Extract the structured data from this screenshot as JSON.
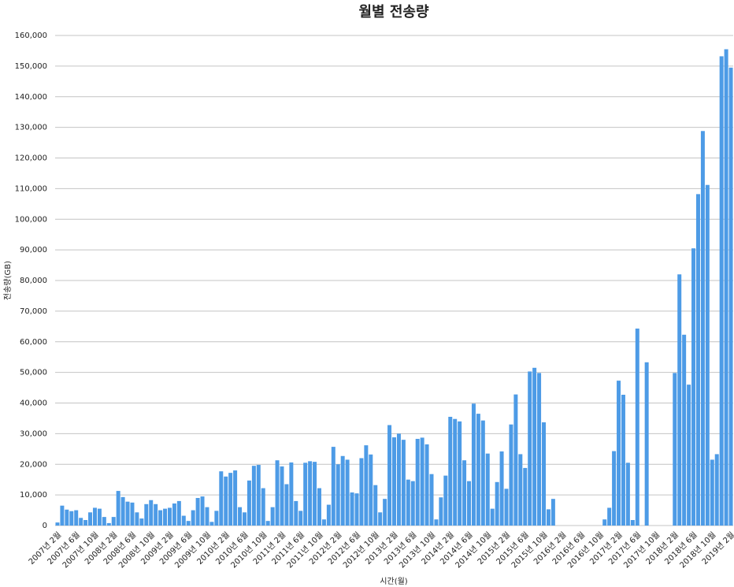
{
  "chart_data": {
    "type": "bar",
    "title": "월별 전송량",
    "y_label": "전송량(GB)",
    "x_label": "시간(월)",
    "color": "#4d9be6",
    "grid": true,
    "categories": [
      "2007년 2월",
      null,
      null,
      null,
      "2007년 6월",
      null,
      null,
      null,
      "2007년 10월",
      null,
      null,
      null,
      "2008년 2월",
      null,
      null,
      null,
      "2008년 6월",
      null,
      null,
      null,
      "2008년 10월",
      null,
      null,
      null,
      "2009년 2월",
      null,
      null,
      null,
      "2009년 6월",
      null,
      null,
      null,
      "2009년 10월",
      null,
      null,
      null,
      "2010년 2월",
      null,
      null,
      null,
      "2010년 6월",
      null,
      null,
      null,
      "2010년 10월",
      null,
      null,
      null,
      "2011년 2월",
      null,
      null,
      null,
      "2011년 6월",
      null,
      null,
      null,
      "2011년 10월",
      null,
      null,
      null,
      "2012년 2월",
      null,
      null,
      null,
      "2012년 6월",
      null,
      null,
      null,
      "2012년 10월",
      null,
      null,
      null,
      "2013년 2월",
      null,
      null,
      null,
      "2013년 6월",
      null,
      null,
      null,
      "2013년 10월",
      null,
      null,
      null,
      "2014년 2월",
      null,
      null,
      null,
      "2014년 6월",
      null,
      null,
      null,
      "2014년 10월",
      null,
      null,
      null,
      "2015년 2월",
      null,
      null,
      null,
      "2015년 6월",
      null,
      null,
      null,
      "2015년 10월",
      null,
      null,
      null,
      "2016년 2월",
      null,
      null,
      null,
      "2016년 6월",
      null,
      null,
      null,
      "2016년 10월",
      null,
      null,
      null,
      "2017년 2월",
      null,
      null,
      null,
      "2017년 6월",
      null,
      null,
      null,
      "2017년 10월",
      null,
      null,
      null,
      "2018년 2월",
      null,
      null,
      null,
      "2018년 6월",
      null,
      null,
      null,
      "2018년 10월",
      null,
      null,
      null,
      "2019년 2월"
    ],
    "values": [
      1000,
      6500,
      5200,
      4700,
      5000,
      2500,
      1800,
      4300,
      5800,
      5500,
      2800,
      800,
      2800,
      11300,
      9300,
      7800,
      7500,
      4300,
      2300,
      7000,
      8300,
      7000,
      5000,
      5500,
      5800,
      7200,
      8000,
      3200,
      1500,
      5000,
      9000,
      9500,
      6000,
      1200,
      4800,
      17700,
      16000,
      17200,
      18000,
      6000,
      4300,
      14700,
      19500,
      19800,
      12200,
      1500,
      6000,
      21300,
      19300,
      13500,
      20600,
      8000,
      4800,
      20500,
      21000,
      20800,
      12200,
      2000,
      6800,
      25700,
      20000,
      22700,
      21500,
      10800,
      10500,
      22000,
      26200,
      23200,
      13200,
      4300,
      8700,
      32800,
      28800,
      30000,
      28000,
      15000,
      14500,
      28300,
      28700,
      26500,
      16800,
      2000,
      9200,
      16300,
      35500,
      34800,
      34000,
      21300,
      14500,
      39800,
      36500,
      34300,
      23500,
      5500,
      14200,
      24200,
      12000,
      33000,
      42800,
      23300,
      18800,
      50300,
      51500,
      49800,
      33700,
      5300,
      8700,
      0,
      0,
      0,
      0,
      0,
      0,
      0,
      0,
      0,
      0,
      2000,
      5800,
      24300,
      47300,
      42700,
      20500,
      1800,
      64300,
      0,
      53300,
      0,
      0,
      0,
      0,
      0,
      49800,
      82000,
      62300,
      46000,
      90500,
      108200,
      128800,
      111200,
      21500,
      23300,
      153200,
      155500,
      149500
    ],
    "ylim": [
      0,
      160000
    ],
    "yticks": [
      0,
      {
        "value": 10000,
        "label": "10,000"
      },
      {
        "value": 20000,
        "label": "20,000"
      },
      {
        "value": 30000,
        "label": "30,000"
      },
      {
        "value": 40000,
        "label": "40,000"
      },
      {
        "value": 50000,
        "label": "50,000"
      },
      {
        "value": 60000,
        "label": "60,000"
      },
      {
        "value": 70000,
        "label": "70,000"
      },
      {
        "value": 80000,
        "label": "80,000"
      },
      {
        "value": 90000,
        "label": "90,000"
      },
      {
        "value": 100000,
        "label": "100,000"
      },
      {
        "value": 110000,
        "label": "110,000"
      },
      {
        "value": 120000,
        "label": "120,000"
      },
      {
        "value": 130000,
        "label": "130,000"
      },
      {
        "value": 140000,
        "label": "140,000"
      },
      {
        "value": 150000,
        "label": "150,000"
      },
      {
        "value": 160000,
        "label": "160,000"
      }
    ]
  }
}
